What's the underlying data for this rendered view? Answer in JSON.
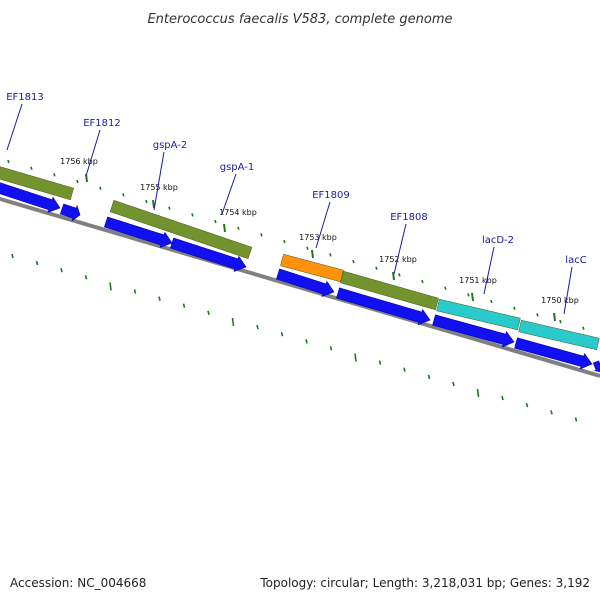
{
  "title": "Enterococcus faecalis V583, complete genome",
  "footer": {
    "accession": "Accession: NC_004668",
    "summary": "Topology: circular; Length: 3,218,031 bp; Genes: 3,192"
  },
  "colors": {
    "cds_arrow": "#1010f0",
    "backbone": "#808080",
    "tick": "#1a7a1a",
    "label": "#1a1aa8",
    "olive_gene": "#6b8e23",
    "orange_gene": "#ff8c00",
    "cyan_gene": "#20c8c8"
  },
  "gene_labels": [
    {
      "name": "EF1813"
    },
    {
      "name": "EF1812"
    },
    {
      "name": "gspA-2"
    },
    {
      "name": "gspA-1"
    },
    {
      "name": "EF1809"
    },
    {
      "name": "EF1808"
    },
    {
      "name": "lacD-2"
    },
    {
      "name": "lacC"
    }
  ],
  "position_labels": [
    {
      "text": "1756 kbp"
    },
    {
      "text": "1755 kbp"
    },
    {
      "text": "1754 kbp"
    },
    {
      "text": "1753 kbp"
    },
    {
      "text": "1752 kbp"
    },
    {
      "text": "1751 kbp"
    },
    {
      "text": "1750 kbp"
    }
  ],
  "feature_bars": [
    {
      "kind": "olive"
    },
    {
      "kind": "olive"
    },
    {
      "kind": "orange"
    },
    {
      "kind": "olive"
    },
    {
      "kind": "cyan"
    },
    {
      "kind": "cyan"
    }
  ]
}
